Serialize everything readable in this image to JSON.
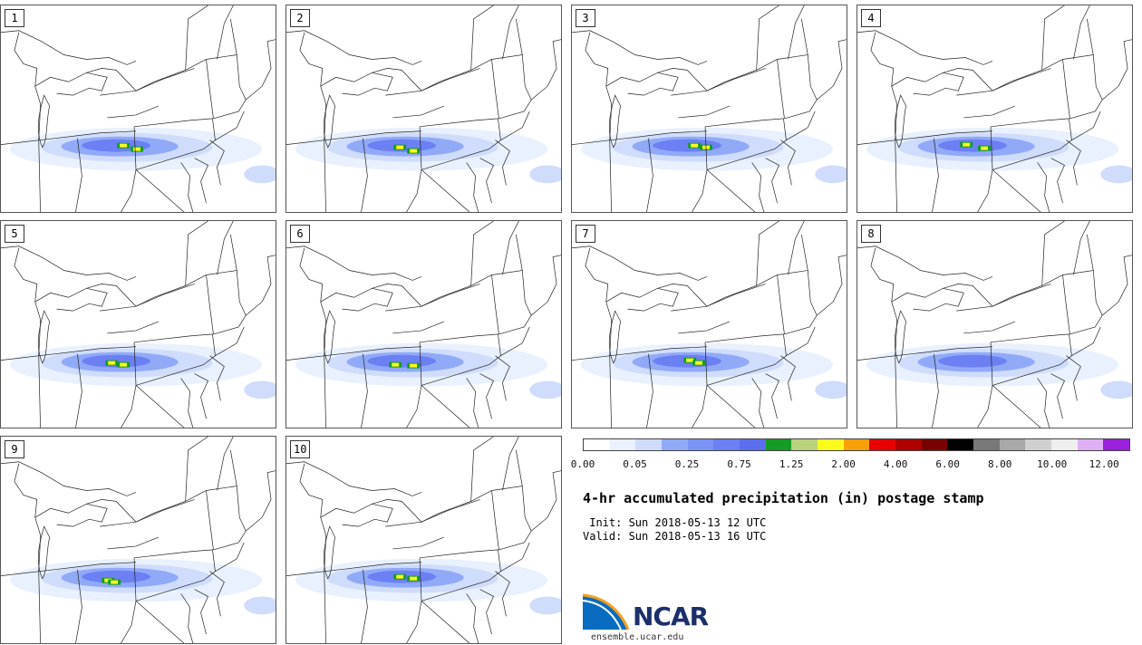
{
  "panels": [
    {
      "label": "1"
    },
    {
      "label": "2"
    },
    {
      "label": "3"
    },
    {
      "label": "4"
    },
    {
      "label": "5"
    },
    {
      "label": "6"
    },
    {
      "label": "7"
    },
    {
      "label": "8"
    },
    {
      "label": "9"
    },
    {
      "label": "10"
    }
  ],
  "colorbar": {
    "colors": [
      "#ffffff",
      "#e8f1fd",
      "#cfdcfb",
      "#90aaf8",
      "#7b92f6",
      "#6c80f4",
      "#5c6ef0",
      "#149c26",
      "#b8d37c",
      "#fcfc1c",
      "#f8a008",
      "#e80000",
      "#b00000",
      "#780000",
      "#000000",
      "#787878",
      "#a8a8a8",
      "#d0d0d0",
      "#eeeeee",
      "#e0b0f4",
      "#9a20dc"
    ],
    "tick_labels": [
      "0.00",
      "0.05",
      "0.25",
      "0.75",
      "1.25",
      "2.00",
      "4.00",
      "6.00",
      "8.00",
      "10.00",
      "12.00"
    ]
  },
  "title": "4-hr accumulated precipitation (in) postage stamp",
  "init_line": " Init: Sun 2018-05-13 12 UTC",
  "valid_line": "Valid: Sun 2018-05-13 16 UTC",
  "logo": {
    "text": "NCAR",
    "url": "ensemble.ucar.edu"
  }
}
